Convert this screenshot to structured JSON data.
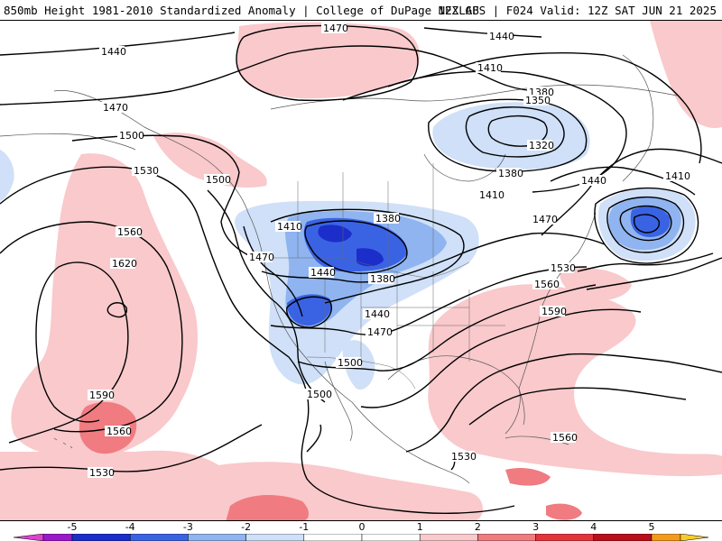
{
  "header": {
    "title_left": "850mb Height 1981-2010 Standardized Anomaly | College of DuPage NEXLAB",
    "title_right": "12Z GFS | F024 Valid: 12Z SAT JUN 21 2025"
  },
  "map": {
    "contour_labels": [
      {
        "id": "l1470a",
        "text": "1470"
      },
      {
        "id": "l1440a",
        "text": "1440"
      },
      {
        "id": "l1440b",
        "text": "1440"
      },
      {
        "id": "l1410a",
        "text": "1410"
      },
      {
        "id": "l1470b",
        "text": "1470"
      },
      {
        "id": "l1380a",
        "text": "1380"
      },
      {
        "id": "l1350",
        "text": "1350"
      },
      {
        "id": "l1320",
        "text": "1320"
      },
      {
        "id": "l1500a",
        "text": "1500"
      },
      {
        "id": "l1530a",
        "text": "1530"
      },
      {
        "id": "l1500b",
        "text": "1500"
      },
      {
        "id": "l1380b",
        "text": "1380"
      },
      {
        "id": "l1440c",
        "text": "1440"
      },
      {
        "id": "l1410b",
        "text": "1410"
      },
      {
        "id": "l1410c",
        "text": "1410"
      },
      {
        "id": "l1410d",
        "text": "1410"
      },
      {
        "id": "l1470c",
        "text": "1470"
      },
      {
        "id": "l1560a",
        "text": "1560"
      },
      {
        "id": "l1620",
        "text": "1620"
      },
      {
        "id": "l1470d",
        "text": "1470"
      },
      {
        "id": "l1440d",
        "text": "1440"
      },
      {
        "id": "l1380c",
        "text": "1380"
      },
      {
        "id": "l1530b",
        "text": "1530"
      },
      {
        "id": "l1560b",
        "text": "1560"
      },
      {
        "id": "l1590a",
        "text": "1590"
      },
      {
        "id": "l1440e",
        "text": "1440"
      },
      {
        "id": "l1470e",
        "text": "1470"
      },
      {
        "id": "l1500c",
        "text": "1500"
      },
      {
        "id": "l1590b",
        "text": "1590"
      },
      {
        "id": "l1500d",
        "text": "1500"
      },
      {
        "id": "l1560c",
        "text": "1560"
      },
      {
        "id": "l1560d",
        "text": "1560"
      },
      {
        "id": "l1530c",
        "text": "1530"
      },
      {
        "id": "l1530d",
        "text": "1530"
      },
      {
        "id": "l1380d",
        "text": "1380"
      }
    ]
  },
  "colorbar": {
    "labels": [
      "-5",
      "-4",
      "-3",
      "-2",
      "-1",
      "0",
      "1",
      "2",
      "3",
      "4",
      "5"
    ],
    "bins": [
      {
        "color": "#e040d0"
      },
      {
        "color": "#9a19c9"
      },
      {
        "color": "#1c2ec9"
      },
      {
        "color": "#3a63e4"
      },
      {
        "color": "#8fb4f0"
      },
      {
        "color": "#cfe0f8"
      },
      {
        "color": "#ffffff"
      },
      {
        "color": "#ffffff"
      },
      {
        "color": "#f9c9cc"
      },
      {
        "color": "#f07b80"
      },
      {
        "color": "#e3343c"
      },
      {
        "color": "#b90f1a"
      },
      {
        "color": "#f49a1a"
      },
      {
        "color": "#f9cb2a"
      }
    ]
  },
  "colors": {
    "anom_pos_1": "#f9c9cc",
    "anom_pos_2": "#f07b80",
    "anom_neg_1": "#cfe0f8",
    "anom_neg_2": "#8fb4f0",
    "anom_neg_3": "#3a63e4",
    "anom_neg_4": "#1c2ec9"
  }
}
